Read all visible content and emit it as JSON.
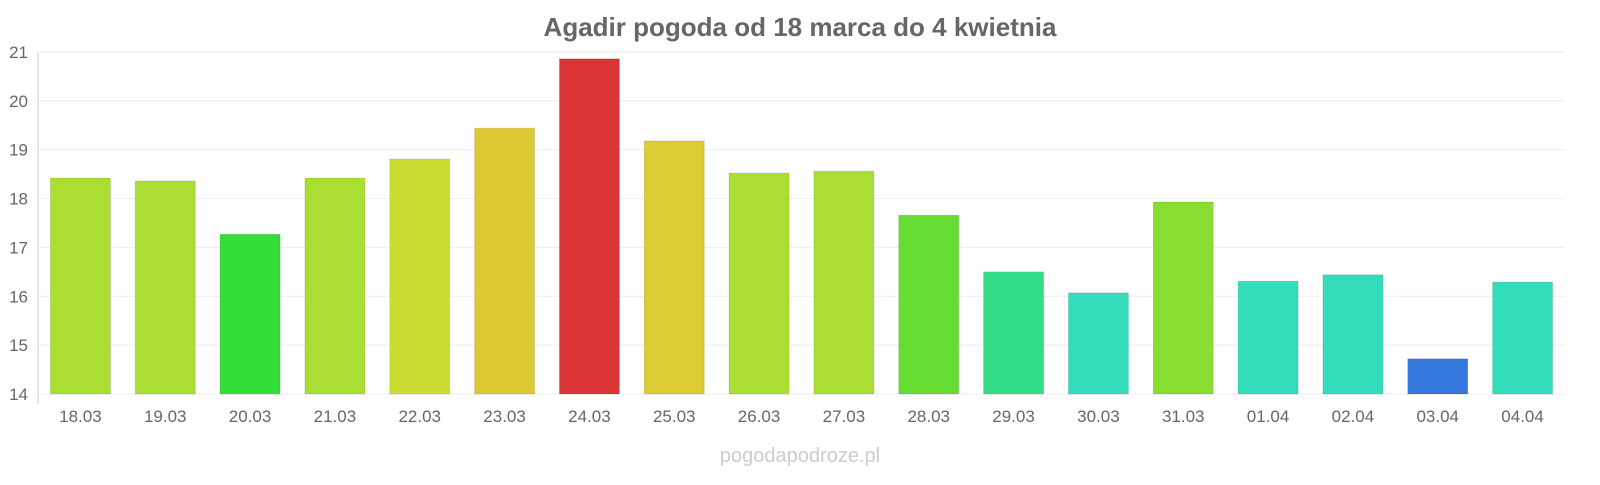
{
  "chart_data": {
    "type": "bar",
    "title": "Agadir pogoda od 18 marca do 4 kwietnia",
    "xlabel": "",
    "ylabel": "",
    "ylim": [
      14,
      21
    ],
    "yticks": [
      14,
      15,
      16,
      17,
      18,
      19,
      20,
      21
    ],
    "grid": true,
    "categories": [
      "18.03",
      "19.03",
      "20.03",
      "21.03",
      "22.03",
      "23.03",
      "24.03",
      "25.03",
      "26.03",
      "27.03",
      "28.03",
      "29.03",
      "30.03",
      "31.03",
      "01.04",
      "02.04",
      "03.04",
      "04.04"
    ],
    "values": [
      18.42,
      18.36,
      17.27,
      18.42,
      18.81,
      19.44,
      20.86,
      19.18,
      18.52,
      18.56,
      17.66,
      16.5,
      16.07,
      17.93,
      16.31,
      16.44,
      14.72,
      16.29
    ],
    "colors": [
      "#aade33",
      "#aade33",
      "#33de38",
      "#aade33",
      "#ccde33",
      "#dcc933",
      "#dc3535",
      "#dccb33",
      "#aade33",
      "#aade33",
      "#66dd33",
      "#33dd88",
      "#33ddbb",
      "#88dd33",
      "#33ddbb",
      "#33ddbb",
      "#3377dd",
      "#33ddbb"
    ]
  },
  "watermark": "pogodapodroze.pl"
}
